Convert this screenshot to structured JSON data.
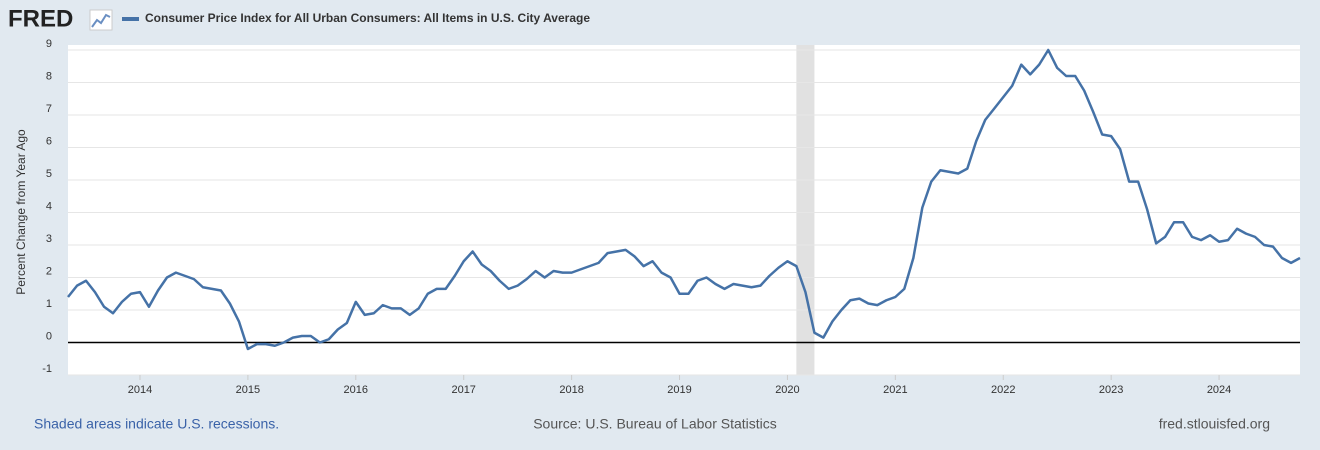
{
  "logo": "FRED",
  "chart_data": {
    "type": "line",
    "ylabel": "Percent Change from Year Ago",
    "series": [
      {
        "name": "Consumer Price Index for All Urban Consumers: All Items in U.S. City Average",
        "color": "#4572a7",
        "values": [
          1.4,
          1.75,
          1.9,
          1.55,
          1.1,
          0.9,
          1.25,
          1.5,
          1.55,
          1.1,
          1.6,
          2.0,
          2.15,
          2.05,
          1.95,
          1.7,
          1.65,
          1.6,
          1.2,
          0.65,
          -0.2,
          -0.05,
          -0.05,
          -0.1,
          0.0,
          0.15,
          0.2,
          0.2,
          0.0,
          0.1,
          0.4,
          0.6,
          1.25,
          0.85,
          0.9,
          1.15,
          1.05,
          1.05,
          0.85,
          1.05,
          1.5,
          1.65,
          1.65,
          2.05,
          2.5,
          2.8,
          2.4,
          2.2,
          1.9,
          1.65,
          1.75,
          1.95,
          2.2,
          2.0,
          2.2,
          2.15,
          2.15,
          2.25,
          2.35,
          2.45,
          2.75,
          2.8,
          2.85,
          2.65,
          2.35,
          2.5,
          2.15,
          2.0,
          1.5,
          1.5,
          1.9,
          2.0,
          1.8,
          1.65,
          1.8,
          1.75,
          1.7,
          1.75,
          2.05,
          2.3,
          2.5,
          2.35,
          1.55,
          0.3,
          0.15,
          0.65,
          1.0,
          1.3,
          1.35,
          1.2,
          1.15,
          1.3,
          1.4,
          1.65,
          2.6,
          4.15,
          4.95,
          5.3,
          5.25,
          5.2,
          5.35,
          6.2,
          6.85,
          7.2,
          7.55,
          7.9,
          8.55,
          8.25,
          8.55,
          9.0,
          8.45,
          8.2,
          8.2,
          7.75,
          7.1,
          6.4,
          6.35,
          5.95,
          4.95,
          4.95,
          4.1,
          3.05,
          3.25,
          3.7,
          3.7,
          3.25,
          3.15,
          3.3,
          3.1,
          3.15,
          3.5,
          3.35,
          3.25,
          3.0,
          2.95,
          2.6,
          2.45,
          2.6
        ]
      }
    ],
    "x": [
      2013.333,
      2013.417,
      2013.5,
      2013.583,
      2013.667,
      2013.75,
      2013.833,
      2013.917,
      2014,
      2014.083,
      2014.167,
      2014.25,
      2014.333,
      2014.417,
      2014.5,
      2014.583,
      2014.667,
      2014.75,
      2014.833,
      2014.917,
      2015,
      2015.083,
      2015.167,
      2015.25,
      2015.333,
      2015.417,
      2015.5,
      2015.583,
      2015.667,
      2015.75,
      2015.833,
      2015.917,
      2016,
      2016.083,
      2016.167,
      2016.25,
      2016.333,
      2016.417,
      2016.5,
      2016.583,
      2016.667,
      2016.75,
      2016.833,
      2016.917,
      2017,
      2017.083,
      2017.167,
      2017.25,
      2017.333,
      2017.417,
      2017.5,
      2017.583,
      2017.667,
      2017.75,
      2017.833,
      2017.917,
      2018,
      2018.083,
      2018.167,
      2018.25,
      2018.333,
      2018.417,
      2018.5,
      2018.583,
      2018.667,
      2018.75,
      2018.833,
      2018.917,
      2019,
      2019.083,
      2019.167,
      2019.25,
      2019.333,
      2019.417,
      2019.5,
      2019.583,
      2019.667,
      2019.75,
      2019.833,
      2019.917,
      2020,
      2020.083,
      2020.167,
      2020.25,
      2020.333,
      2020.417,
      2020.5,
      2020.583,
      2020.667,
      2020.75,
      2020.833,
      2020.917,
      2021,
      2021.083,
      2021.167,
      2021.25,
      2021.333,
      2021.417,
      2021.5,
      2021.583,
      2021.667,
      2021.75,
      2021.833,
      2021.917,
      2022,
      2022.083,
      2022.167,
      2022.25,
      2022.333,
      2022.417,
      2022.5,
      2022.583,
      2022.667,
      2022.75,
      2022.833,
      2022.917,
      2023,
      2023.083,
      2023.167,
      2023.25,
      2023.333,
      2023.417,
      2023.5,
      2023.583,
      2023.667,
      2023.75,
      2023.833,
      2023.917,
      2024,
      2024.083,
      2024.167,
      2024.25,
      2024.333,
      2024.417,
      2024.5,
      2024.583,
      2024.667,
      2024.75
    ],
    "xlim": [
      2013.333,
      2024.75
    ],
    "xticks": [
      2014,
      2015,
      2016,
      2017,
      2018,
      2019,
      2020,
      2021,
      2022,
      2023,
      2024
    ],
    "ylim": [
      -1,
      9
    ],
    "yticks": [
      -1,
      0,
      1,
      2,
      3,
      4,
      5,
      6,
      7,
      8,
      9
    ],
    "grid": true,
    "recession": [
      2020.083,
      2020.25
    ],
    "footnote": "Shaded areas indicate U.S. recessions.",
    "source": "Source: U.S. Bureau of Labor Statistics",
    "site": "fred.stlouisfed.org"
  }
}
